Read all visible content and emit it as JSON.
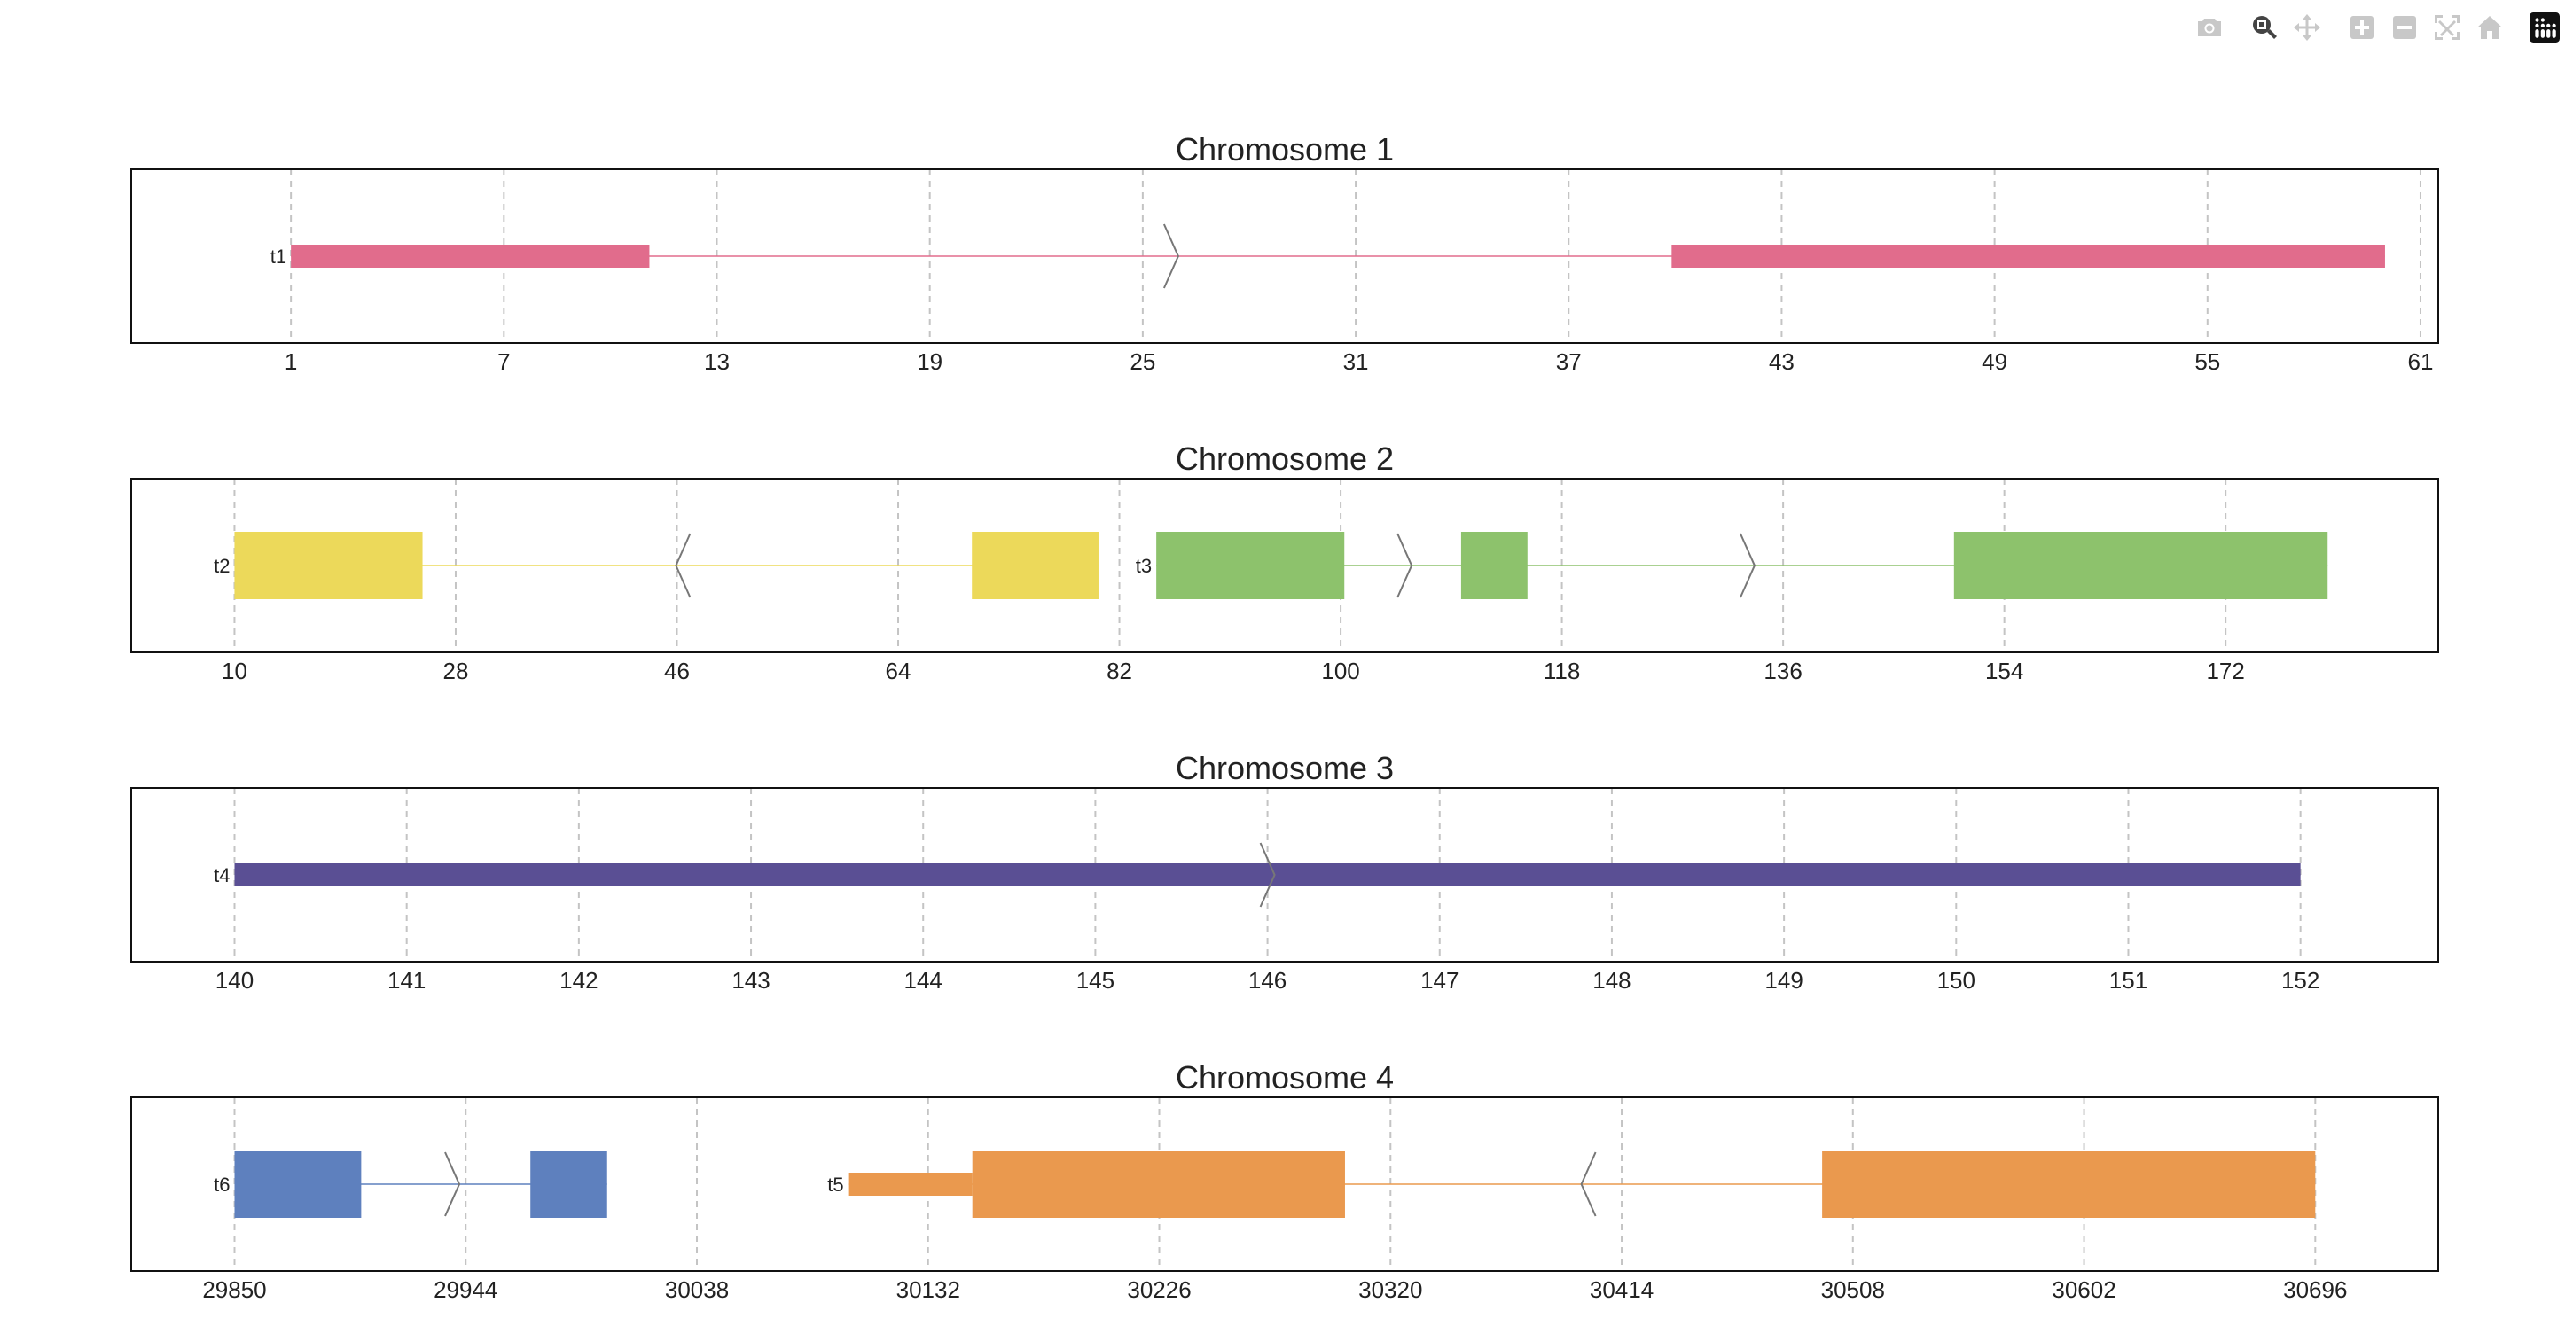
{
  "modebar": {
    "buttons": [
      {
        "name": "camera-icon",
        "title": "Download plot as a png",
        "active": false,
        "group": 1
      },
      {
        "name": "zoom-icon",
        "title": "Zoom",
        "active": true,
        "group": 2
      },
      {
        "name": "pan-icon",
        "title": "Pan",
        "active": false,
        "group": 2
      },
      {
        "name": "zoom-in-icon",
        "title": "Zoom in",
        "active": false,
        "group": 3
      },
      {
        "name": "zoom-out-icon",
        "title": "Zoom out",
        "active": false,
        "group": 3
      },
      {
        "name": "autoscale-icon",
        "title": "Autoscale",
        "active": false,
        "group": 3
      },
      {
        "name": "reset-axes-icon",
        "title": "Reset axes",
        "active": false,
        "group": 3
      },
      {
        "name": "plotly-logo-icon",
        "title": "Produced with Plotly",
        "active": false,
        "group": 4
      }
    ]
  },
  "chart_data": [
    {
      "type": "gene-track",
      "title": "Chromosome 1",
      "xlim": [
        -3.5,
        61.5
      ],
      "xticks": [
        1,
        7,
        13,
        19,
        25,
        31,
        37,
        43,
        49,
        55,
        61
      ],
      "grid": true,
      "transcripts": [
        {
          "name": "t1",
          "color": "#e16c8c",
          "strand": "+",
          "start": 1,
          "end": 60,
          "exons": [
            {
              "start": 1,
              "end": 11.1,
              "height": "half"
            },
            {
              "start": 39.9,
              "end": 60,
              "height": "half"
            }
          ],
          "arrows": [
            25.8
          ]
        }
      ]
    },
    {
      "type": "gene-track",
      "title": "Chromosome 2",
      "xlim": [
        1.6,
        189.3
      ],
      "xticks": [
        10,
        28,
        46,
        64,
        82,
        100,
        118,
        136,
        154,
        172
      ],
      "grid": true,
      "transcripts": [
        {
          "name": "t2",
          "color": "#ecd95a",
          "strand": "-",
          "start": 10,
          "end": 80.3,
          "exons": [
            {
              "start": 10,
              "end": 25.3,
              "height": "full"
            },
            {
              "start": 70,
              "end": 80.3,
              "height": "full"
            }
          ],
          "arrows": [
            46.5
          ]
        },
        {
          "name": "t3",
          "color": "#8dc26c",
          "strand": "+",
          "start": 85,
          "end": 180.3,
          "exons": [
            {
              "start": 85,
              "end": 100.3,
              "height": "full"
            },
            {
              "start": 109.8,
              "end": 115.2,
              "height": "full"
            },
            {
              "start": 149.9,
              "end": 180.3,
              "height": "full"
            }
          ],
          "arrows": [
            105.2,
            133.1
          ]
        }
      ]
    },
    {
      "type": "gene-track",
      "title": "Chromosome 3",
      "xlim": [
        139.4,
        152.8
      ],
      "xticks": [
        140,
        141,
        142,
        143,
        144,
        145,
        146,
        147,
        148,
        149,
        150,
        151,
        152
      ],
      "grid": true,
      "transcripts": [
        {
          "name": "t4",
          "color": "#5a4f94",
          "strand": "+",
          "start": 140,
          "end": 152,
          "exons": [
            {
              "start": 140,
              "end": 152,
              "height": "half"
            }
          ],
          "arrows": [
            146
          ]
        }
      ]
    },
    {
      "type": "gene-track",
      "title": "Chromosome 4",
      "xlim": [
        29808,
        30746
      ],
      "xticks": [
        29850,
        29944,
        30038,
        30132,
        30226,
        30320,
        30414,
        30508,
        30602,
        30696
      ],
      "grid": true,
      "transcripts": [
        {
          "name": "t6",
          "color": "#5e80be",
          "strand": "+",
          "start": 29850,
          "end": 30001.5,
          "exons": [
            {
              "start": 29850,
              "end": 29901.5,
              "height": "full"
            },
            {
              "start": 29970.3,
              "end": 30001.5,
              "height": "full"
            }
          ],
          "arrows": [
            29938.5
          ]
        },
        {
          "name": "t5",
          "color": "#ea994e",
          "strand": "-",
          "start": 30099.5,
          "end": 30696,
          "exons": [
            {
              "start": 30099.5,
              "end": 30150,
              "height": "half"
            },
            {
              "start": 30150,
              "end": 30301.5,
              "height": "full"
            },
            {
              "start": 30495.5,
              "end": 30696,
              "height": "full"
            }
          ],
          "arrows": [
            30400.5
          ]
        }
      ]
    }
  ]
}
